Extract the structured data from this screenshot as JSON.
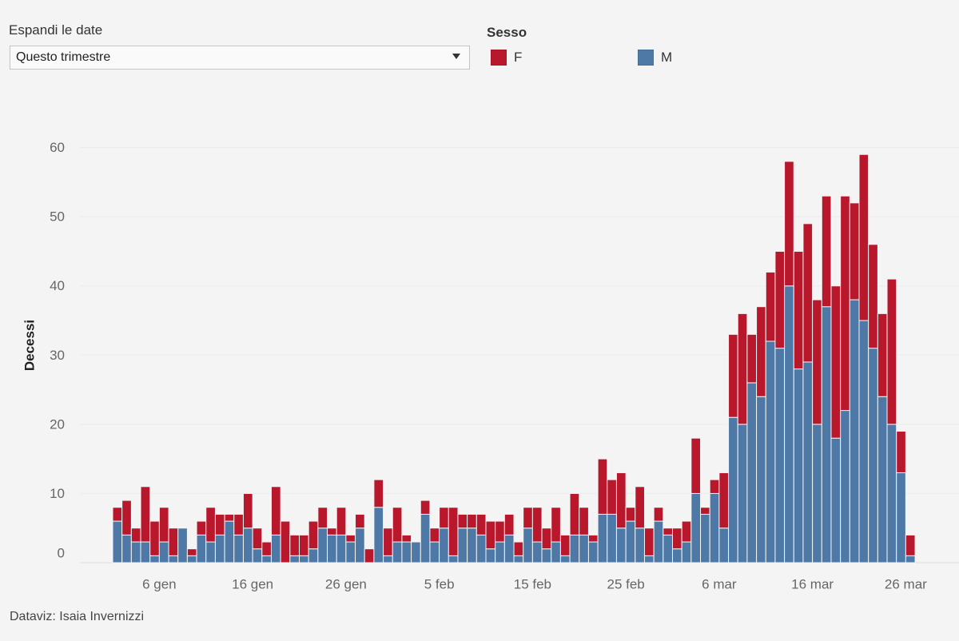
{
  "filter": {
    "label": "Espandi le date",
    "value": "Questo trimestre",
    "icon": "caret-down-icon"
  },
  "footer": {
    "credit": "Dataviz: Isaia Invernizzi"
  },
  "chart_data": {
    "type": "bar",
    "stacked": true,
    "ylabel": "Decessi",
    "legend_title": "Sesso",
    "legend_position": "top",
    "grid": true,
    "ylim": [
      0,
      60
    ],
    "y_ticks": [
      0,
      10,
      20,
      30,
      40,
      50,
      60
    ],
    "x_ticks": [
      "6 gen",
      "16 gen",
      "26 gen",
      "5 feb",
      "15 feb",
      "25 feb",
      "6 mar",
      "16 mar",
      "26 mar"
    ],
    "x": [
      "1 gen",
      "2 gen",
      "3 gen",
      "4 gen",
      "5 gen",
      "6 gen",
      "7 gen",
      "8 gen",
      "9 gen",
      "10 gen",
      "11 gen",
      "12 gen",
      "13 gen",
      "14 gen",
      "15 gen",
      "16 gen",
      "17 gen",
      "18 gen",
      "19 gen",
      "20 gen",
      "21 gen",
      "22 gen",
      "23 gen",
      "24 gen",
      "25 gen",
      "26 gen",
      "27 gen",
      "28 gen",
      "29 gen",
      "30 gen",
      "31 gen",
      "1 feb",
      "2 feb",
      "3 feb",
      "4 feb",
      "5 feb",
      "6 feb",
      "7 feb",
      "8 feb",
      "9 feb",
      "10 feb",
      "11 feb",
      "12 feb",
      "13 feb",
      "14 feb",
      "15 feb",
      "16 feb",
      "17 feb",
      "18 feb",
      "19 feb",
      "20 feb",
      "21 feb",
      "22 feb",
      "23 feb",
      "24 feb",
      "25 feb",
      "26 feb",
      "27 feb",
      "28 feb",
      "29 feb",
      "1 mar",
      "2 mar",
      "3 mar",
      "4 mar",
      "5 mar",
      "6 mar",
      "7 mar",
      "8 mar",
      "9 mar",
      "10 mar",
      "11 mar",
      "12 mar",
      "13 mar",
      "14 mar",
      "15 mar",
      "16 mar",
      "17 mar",
      "18 mar",
      "19 mar",
      "20 mar",
      "21 mar",
      "22 mar",
      "23 mar",
      "24 mar",
      "25 mar",
      "26 mar"
    ],
    "series": [
      {
        "name": "F",
        "color": "#b8172c",
        "values": [
          2,
          5,
          2,
          8,
          5,
          5,
          4,
          0,
          1,
          2,
          5,
          3,
          1,
          3,
          5,
          3,
          2,
          7,
          6,
          3,
          3,
          4,
          3,
          1,
          4,
          1,
          2,
          2,
          4,
          4,
          5,
          1,
          0,
          2,
          2,
          3,
          7,
          2,
          2,
          3,
          4,
          3,
          3,
          2,
          3,
          5,
          3,
          5,
          3,
          6,
          4,
          1,
          8,
          5,
          8,
          2,
          6,
          4,
          2,
          1,
          3,
          3,
          8,
          1,
          2,
          8,
          12,
          16,
          7,
          13,
          10,
          14,
          18,
          17,
          20,
          18,
          16,
          22,
          31,
          14,
          24,
          15,
          12,
          21,
          6,
          3
        ]
      },
      {
        "name": "M",
        "color": "#4e79a7",
        "values": [
          6,
          4,
          3,
          3,
          1,
          3,
          1,
          5,
          1,
          4,
          3,
          4,
          6,
          4,
          5,
          2,
          1,
          4,
          0,
          1,
          1,
          2,
          5,
          4,
          4,
          3,
          5,
          0,
          8,
          1,
          3,
          3,
          3,
          7,
          3,
          5,
          1,
          5,
          5,
          4,
          2,
          3,
          4,
          1,
          5,
          3,
          2,
          3,
          1,
          4,
          4,
          3,
          7,
          7,
          5,
          6,
          5,
          1,
          6,
          4,
          2,
          3,
          10,
          7,
          10,
          5,
          21,
          20,
          26,
          24,
          32,
          31,
          40,
          28,
          29,
          20,
          37,
          18,
          22,
          38,
          35,
          31,
          24,
          20,
          13,
          1
        ]
      }
    ]
  }
}
